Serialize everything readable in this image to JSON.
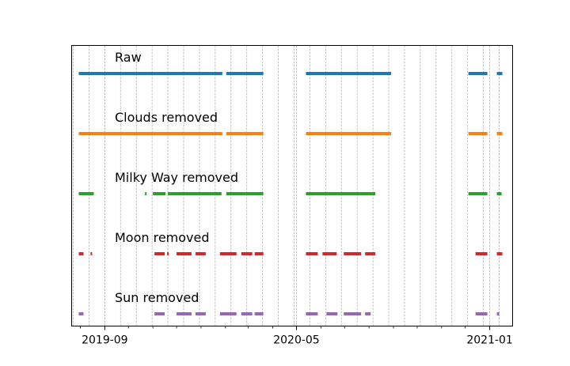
{
  "chart_data": {
    "type": "timeline",
    "xlim": [
      "2019-07-21",
      "2021-01-30"
    ],
    "x_ticks": [
      {
        "date": "2019-09-01",
        "label": "2019-09"
      },
      {
        "date": "2020-05-01",
        "label": "2020-05"
      },
      {
        "date": "2021-01-01",
        "label": "2021-01"
      }
    ],
    "grid": {
      "x_minor": true,
      "x_interval_days": 20,
      "style": "dashed"
    },
    "y_axis_visible": false,
    "series": [
      {
        "name": "Raw",
        "color": "#1f77b4",
        "segments": [
          [
            "2019-07-30",
            "2020-01-28"
          ],
          [
            "2020-02-02",
            "2020-03-20"
          ],
          [
            "2020-05-13",
            "2020-08-29"
          ],
          [
            "2020-12-05",
            "2020-12-29"
          ],
          [
            "2021-01-10",
            "2021-01-17"
          ]
        ]
      },
      {
        "name": "Clouds removed",
        "color": "#ff7f0e",
        "segments": [
          [
            "2019-07-30",
            "2020-01-28"
          ],
          [
            "2020-02-02",
            "2020-03-20"
          ],
          [
            "2020-05-13",
            "2020-08-29"
          ],
          [
            "2020-12-05",
            "2020-12-29"
          ],
          [
            "2021-01-10",
            "2021-01-17"
          ]
        ]
      },
      {
        "name": "Milky Way removed",
        "color": "#2ca02c",
        "segments": [
          [
            "2019-07-30",
            "2019-08-18"
          ],
          [
            "2019-10-22",
            "2019-10-24"
          ],
          [
            "2019-11-01",
            "2019-11-17"
          ],
          [
            "2019-11-20",
            "2020-01-27"
          ],
          [
            "2020-02-02",
            "2020-03-20"
          ],
          [
            "2020-05-13",
            "2020-08-09"
          ],
          [
            "2020-12-05",
            "2020-12-29"
          ],
          [
            "2021-01-10",
            "2021-01-16"
          ]
        ]
      },
      {
        "name": "Moon removed",
        "color": "#d62728",
        "segments": [
          [
            "2019-07-30",
            "2019-08-05"
          ],
          [
            "2019-08-14",
            "2019-08-16"
          ],
          [
            "2019-11-03",
            "2019-11-16"
          ],
          [
            "2019-11-19",
            "2019-11-21"
          ],
          [
            "2019-12-01",
            "2019-12-20"
          ],
          [
            "2019-12-25",
            "2020-01-07"
          ],
          [
            "2020-01-25",
            "2020-02-15"
          ],
          [
            "2020-02-21",
            "2020-03-06"
          ],
          [
            "2020-03-09",
            "2020-03-20"
          ],
          [
            "2020-05-13",
            "2020-05-28"
          ],
          [
            "2020-06-03",
            "2020-06-21"
          ],
          [
            "2020-06-30",
            "2020-07-22"
          ],
          [
            "2020-07-27",
            "2020-08-09"
          ],
          [
            "2020-12-14",
            "2020-12-29"
          ],
          [
            "2021-01-10",
            "2021-01-17"
          ]
        ]
      },
      {
        "name": "Sun removed",
        "color": "#9467bd",
        "segments": [
          [
            "2019-07-30",
            "2019-08-05"
          ],
          [
            "2019-11-03",
            "2019-11-16"
          ],
          [
            "2019-12-01",
            "2019-12-20"
          ],
          [
            "2019-12-25",
            "2020-01-07"
          ],
          [
            "2020-01-25",
            "2020-02-15"
          ],
          [
            "2020-02-21",
            "2020-03-06"
          ],
          [
            "2020-03-09",
            "2020-03-20"
          ],
          [
            "2020-05-13",
            "2020-05-28"
          ],
          [
            "2020-06-08",
            "2020-06-22"
          ],
          [
            "2020-06-30",
            "2020-07-22"
          ],
          [
            "2020-07-27",
            "2020-08-03"
          ],
          [
            "2020-12-14",
            "2020-12-29"
          ],
          [
            "2021-01-10",
            "2021-01-13"
          ]
        ]
      }
    ]
  }
}
